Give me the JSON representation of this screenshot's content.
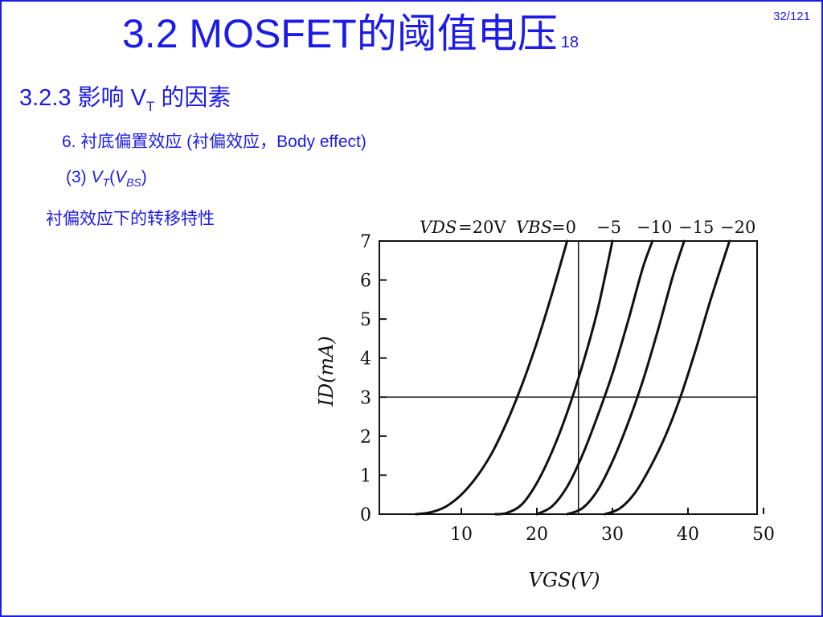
{
  "slide": {
    "title": "3.2  MOSFET的阈值电压",
    "title_suffix": "18",
    "page_number": "32/121",
    "section": {
      "prefix": "3.2.3  影响 V",
      "sub": "T",
      "suffix": " 的因素"
    },
    "item6": "6. 衬底偏置效应 (衬偏效应，Body effect)",
    "item3": {
      "prefix": "(3) ",
      "v1": "V",
      "s1": "T",
      "mid": "(",
      "v2": "V",
      "s2": "BS",
      "end": ")"
    },
    "caption": "衬偏效应下的转移特性"
  },
  "chart_data": {
    "type": "line",
    "header": {
      "vds_label": "VDS",
      "vds_value": "=20V",
      "vbs_label": "VBS",
      "vbs_values": [
        "=0",
        "−5",
        "−10",
        "−15",
        "−20"
      ]
    },
    "xlabel": "VGS(V)",
    "ylabel": "ID(mA)",
    "xlim": [
      0,
      50
    ],
    "ylim": [
      0,
      7
    ],
    "x_ticks": [
      "10",
      "20",
      "30",
      "40",
      "50"
    ],
    "y_ticks": [
      "0",
      "1",
      "2",
      "3",
      "4",
      "5",
      "6",
      "7"
    ],
    "reference_lines": {
      "horizontal_id": 3,
      "vertical_vgs": 25.5
    },
    "series": [
      {
        "name": "0",
        "points": [
          [
            4,
            0
          ],
          [
            6,
            0.05
          ],
          [
            8,
            0.2
          ],
          [
            10,
            0.5
          ],
          [
            12,
            0.95
          ],
          [
            14,
            1.55
          ],
          [
            16,
            2.35
          ],
          [
            18,
            3.3
          ],
          [
            20,
            4.4
          ],
          [
            22,
            5.65
          ],
          [
            24,
            7.0
          ]
        ]
      },
      {
        "name": "−5",
        "points": [
          [
            14.5,
            0
          ],
          [
            16,
            0.03
          ],
          [
            18,
            0.25
          ],
          [
            20,
            0.8
          ],
          [
            22,
            1.6
          ],
          [
            24,
            2.6
          ],
          [
            26,
            3.8
          ],
          [
            28,
            5.2
          ],
          [
            30,
            7.0
          ]
        ]
      },
      {
        "name": "−10",
        "points": [
          [
            20,
            0
          ],
          [
            22,
            0.2
          ],
          [
            24,
            0.7
          ],
          [
            26,
            1.5
          ],
          [
            28,
            2.5
          ],
          [
            30,
            3.6
          ],
          [
            32,
            4.9
          ],
          [
            34,
            6.3
          ],
          [
            35.3,
            7.0
          ]
        ]
      },
      {
        "name": "−15",
        "points": [
          [
            24,
            0
          ],
          [
            26,
            0.15
          ],
          [
            28,
            0.6
          ],
          [
            30,
            1.35
          ],
          [
            32,
            2.3
          ],
          [
            34,
            3.4
          ],
          [
            36,
            4.7
          ],
          [
            38,
            6.1
          ],
          [
            39.5,
            7.0
          ]
        ]
      },
      {
        "name": "−20",
        "points": [
          [
            29,
            0
          ],
          [
            31,
            0.15
          ],
          [
            33,
            0.55
          ],
          [
            35,
            1.2
          ],
          [
            37,
            2.0
          ],
          [
            39,
            3.0
          ],
          [
            41,
            4.2
          ],
          [
            43,
            5.5
          ],
          [
            45.5,
            7.0
          ]
        ]
      }
    ]
  }
}
